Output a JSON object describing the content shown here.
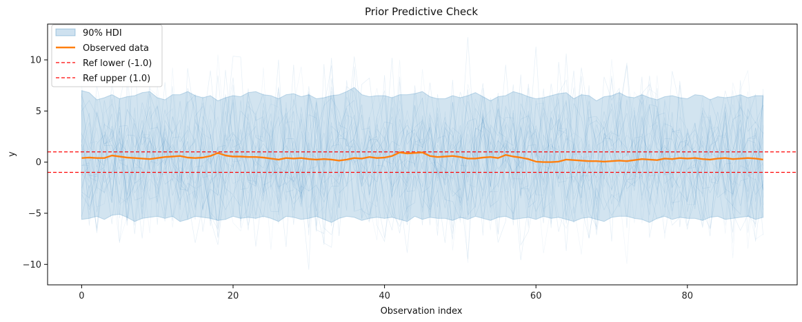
{
  "chart_data": {
    "type": "line",
    "title": "Prior Predictive Check",
    "xlabel": "Observation index",
    "ylabel": "y",
    "xlim": [
      -4.5,
      94.5
    ],
    "ylim": [
      -12,
      13.5
    ],
    "xticks": [
      0,
      20,
      40,
      60,
      80
    ],
    "yticks": [
      -10,
      -5,
      0,
      5,
      10
    ],
    "ytick_labels": [
      "−10",
      "−5",
      "0",
      "5",
      "10"
    ],
    "grid": false,
    "legend_position": "top-left",
    "colors": {
      "hdi": "#1f77b4",
      "observed": "#ff7f0e",
      "ref": "#ff0000"
    },
    "legend": [
      {
        "label": "90% HDI",
        "kind": "patch"
      },
      {
        "label": "Observed data",
        "kind": "line"
      },
      {
        "label": "Ref lower (-1.0)",
        "kind": "dashed"
      },
      {
        "label": "Ref upper (1.0)",
        "kind": "dashed"
      }
    ],
    "reference_lines": [
      {
        "name": "Ref lower (-1.0)",
        "y": -1.0
      },
      {
        "name": "Ref upper (1.0)",
        "y": 1.0
      }
    ],
    "x": [
      0,
      1,
      2,
      3,
      4,
      5,
      6,
      7,
      8,
      9,
      10,
      11,
      12,
      13,
      14,
      15,
      16,
      17,
      18,
      19,
      20,
      21,
      22,
      23,
      24,
      25,
      26,
      27,
      28,
      29,
      30,
      31,
      32,
      33,
      34,
      35,
      36,
      37,
      38,
      39,
      40,
      41,
      42,
      43,
      44,
      45,
      46,
      47,
      48,
      49,
      50,
      51,
      52,
      53,
      54,
      55,
      56,
      57,
      58,
      59,
      60,
      61,
      62,
      63,
      64,
      65,
      66,
      67,
      68,
      69,
      70,
      71,
      72,
      73,
      74,
      75,
      76,
      77,
      78,
      79,
      80,
      81,
      82,
      83,
      84,
      85,
      86,
      87,
      88,
      89,
      90
    ],
    "series": [
      {
        "name": "Observed data",
        "values": [
          0.4,
          0.45,
          0.4,
          0.4,
          0.65,
          0.55,
          0.45,
          0.4,
          0.35,
          0.3,
          0.4,
          0.5,
          0.55,
          0.6,
          0.45,
          0.4,
          0.45,
          0.6,
          0.9,
          0.65,
          0.55,
          0.55,
          0.5,
          0.5,
          0.45,
          0.35,
          0.25,
          0.4,
          0.35,
          0.4,
          0.3,
          0.25,
          0.3,
          0.25,
          0.15,
          0.25,
          0.4,
          0.35,
          0.5,
          0.4,
          0.45,
          0.6,
          0.95,
          0.85,
          0.9,
          0.95,
          0.6,
          0.5,
          0.55,
          0.6,
          0.5,
          0.35,
          0.35,
          0.45,
          0.5,
          0.4,
          0.7,
          0.55,
          0.45,
          0.3,
          0.05,
          0.0,
          0.0,
          0.05,
          0.25,
          0.2,
          0.15,
          0.1,
          0.1,
          0.05,
          0.1,
          0.15,
          0.1,
          0.2,
          0.3,
          0.25,
          0.2,
          0.35,
          0.3,
          0.4,
          0.35,
          0.4,
          0.3,
          0.25,
          0.35,
          0.4,
          0.3,
          0.35,
          0.4,
          0.35,
          0.25
        ]
      },
      {
        "name": "90% HDI upper",
        "values": [
          7.0,
          6.8,
          6.1,
          6.3,
          6.6,
          6.2,
          6.4,
          6.5,
          6.8,
          6.9,
          6.3,
          6.1,
          6.6,
          6.6,
          6.9,
          6.5,
          6.3,
          6.5,
          6.0,
          6.3,
          6.5,
          6.4,
          6.8,
          6.9,
          6.6,
          6.5,
          6.2,
          6.6,
          6.7,
          6.4,
          6.6,
          6.2,
          6.3,
          6.5,
          6.6,
          6.9,
          7.3,
          6.6,
          6.4,
          6.5,
          6.5,
          6.3,
          6.6,
          6.6,
          6.7,
          6.9,
          6.4,
          6.2,
          6.2,
          6.5,
          6.3,
          6.5,
          6.8,
          6.4,
          6.0,
          6.4,
          6.5,
          6.9,
          6.7,
          6.4,
          6.2,
          6.3,
          6.5,
          6.7,
          6.8,
          6.2,
          6.6,
          6.5,
          6.0,
          6.4,
          6.5,
          6.8,
          6.4,
          6.3,
          6.6,
          6.3,
          6.1,
          6.4,
          6.5,
          6.3,
          6.2,
          6.6,
          6.5,
          6.1,
          6.4,
          6.3,
          6.4,
          6.6,
          6.3,
          6.5,
          6.5
        ]
      },
      {
        "name": "90% HDI lower",
        "values": [
          -5.6,
          -5.5,
          -5.3,
          -5.6,
          -5.2,
          -5.1,
          -5.4,
          -5.8,
          -5.5,
          -5.4,
          -5.3,
          -5.5,
          -5.3,
          -5.8,
          -5.6,
          -5.3,
          -5.4,
          -5.5,
          -5.7,
          -5.6,
          -5.3,
          -5.5,
          -5.4,
          -5.5,
          -5.3,
          -5.5,
          -5.8,
          -5.3,
          -5.4,
          -5.6,
          -5.5,
          -5.3,
          -5.6,
          -5.9,
          -5.5,
          -5.3,
          -5.4,
          -5.7,
          -5.5,
          -5.4,
          -5.5,
          -5.4,
          -5.6,
          -5.8,
          -5.3,
          -5.6,
          -5.4,
          -5.5,
          -5.5,
          -5.7,
          -5.4,
          -5.6,
          -5.3,
          -5.5,
          -5.7,
          -5.4,
          -5.3,
          -5.6,
          -5.5,
          -5.4,
          -5.6,
          -5.3,
          -5.5,
          -5.4,
          -5.6,
          -5.8,
          -5.5,
          -5.4,
          -5.6,
          -5.8,
          -5.4,
          -5.3,
          -5.3,
          -5.5,
          -5.6,
          -5.9,
          -5.5,
          -5.3,
          -5.6,
          -5.4,
          -5.5,
          -5.5,
          -5.7,
          -5.4,
          -5.3,
          -5.6,
          -5.5,
          -5.4,
          -5.3,
          -5.6,
          -5.4
        ]
      }
    ]
  }
}
